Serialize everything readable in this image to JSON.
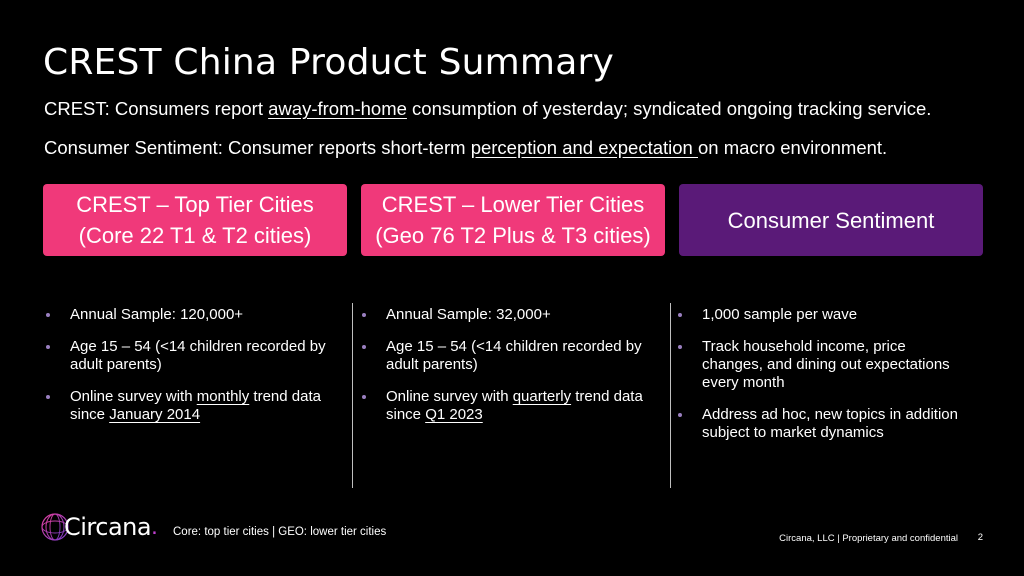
{
  "slide": {
    "title": "CREST China Product Summary",
    "line1": {
      "prefix": "CREST: Consumers report ",
      "underlined": "away-from-home",
      "suffix": " consumption of yesterday; syndicated ongoing tracking service."
    },
    "line2": {
      "prefix": "Consumer Sentiment: Consumer reports short-term ",
      "underlined": "perception and expectation ",
      "suffix": "on macro environment."
    }
  },
  "boxes": [
    {
      "line1": "CREST – Top Tier Cities",
      "line2": "(Core 22 T1 & T2 cities)",
      "color": "#f0397a"
    },
    {
      "line1": "CREST – Lower Tier Cities",
      "line2": "(Geo 76 T2 Plus & T3 cities)",
      "color": "#f0397a"
    },
    {
      "line1": "Consumer Sentiment",
      "line2": "",
      "color": "#5a1a78"
    }
  ],
  "columns": [
    {
      "items": [
        {
          "text": "Annual Sample: 120,000+"
        },
        {
          "text": "Age 15 – 54 (<14 children recorded by adult parents)"
        },
        {
          "prefix": "Online survey with ",
          "u1": "monthly",
          "mid": " trend data since ",
          "u2": "January 2014"
        }
      ]
    },
    {
      "items": [
        {
          "text": "Annual Sample: 32,000+"
        },
        {
          "text": "Age 15 – 54 (<14 children recorded by adult parents)"
        },
        {
          "prefix": "Online survey with ",
          "u1": "quarterly",
          "mid": " trend data since ",
          "u2": "Q1 2023"
        }
      ]
    },
    {
      "items": [
        {
          "text": "1,000 sample per wave"
        },
        {
          "text": "Track household income, price changes, and dining out expectations every month"
        },
        {
          "text": "Address ad hoc, new topics in addition subject to market dynamics"
        }
      ]
    }
  ],
  "footer": {
    "logo_text": "Circana",
    "logo_dot": ".",
    "footnote": "Core: top tier cities | GEO: lower tier cities",
    "company": "Circana, LLC  |  Proprietary and confidential",
    "page_number": "2"
  },
  "icons": {
    "logo": "circana-logo-icon",
    "bullet": "bullet-dot-icon"
  }
}
